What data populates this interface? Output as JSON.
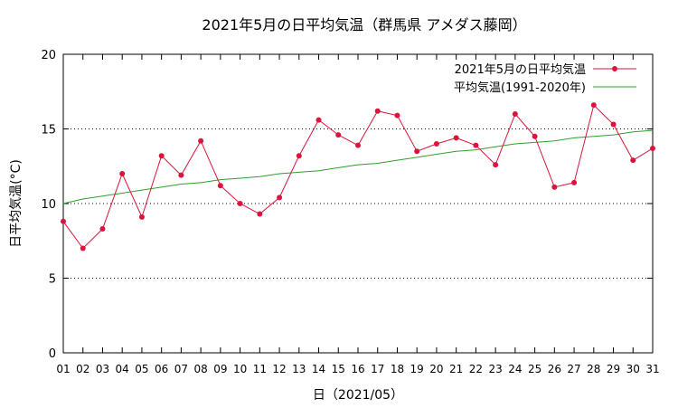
{
  "chart_data": {
    "type": "line",
    "title": "2021年5月の日平均気温（群馬県 アメダス藤岡）",
    "xlabel": "日（2021/05）",
    "ylabel": "日平均気温(°C)",
    "ylim": [
      0,
      20
    ],
    "yticks": [
      "0",
      "5",
      "10",
      "15",
      "20"
    ],
    "grid": "horizontal dotted",
    "legend_position": "top-right",
    "categories": [
      "01",
      "02",
      "03",
      "04",
      "05",
      "06",
      "07",
      "08",
      "09",
      "10",
      "11",
      "12",
      "13",
      "14",
      "15",
      "16",
      "17",
      "18",
      "19",
      "20",
      "21",
      "22",
      "23",
      "24",
      "25",
      "26",
      "27",
      "28",
      "29",
      "30",
      "31"
    ],
    "series": [
      {
        "name": "2021年5月の日平均気温",
        "color": "#dc143c",
        "marker": "circle",
        "values": [
          8.8,
          7.0,
          8.3,
          12.0,
          9.1,
          13.2,
          11.9,
          14.2,
          11.2,
          10.0,
          9.3,
          10.4,
          13.2,
          15.6,
          14.6,
          13.9,
          16.2,
          15.9,
          13.5,
          14.0,
          14.4,
          13.9,
          12.6,
          16.0,
          14.5,
          11.1,
          11.4,
          16.6,
          15.3,
          12.9,
          13.7
        ]
      },
      {
        "name": "平均気温(1991-2020年)",
        "color": "#2ca02c",
        "marker": "none",
        "values": [
          10.0,
          10.3,
          10.5,
          10.7,
          10.9,
          11.1,
          11.3,
          11.4,
          11.6,
          11.7,
          11.8,
          12.0,
          12.1,
          12.2,
          12.4,
          12.6,
          12.7,
          12.9,
          13.1,
          13.3,
          13.5,
          13.6,
          13.8,
          14.0,
          14.1,
          14.2,
          14.4,
          14.5,
          14.6,
          14.8,
          14.9
        ]
      }
    ]
  }
}
